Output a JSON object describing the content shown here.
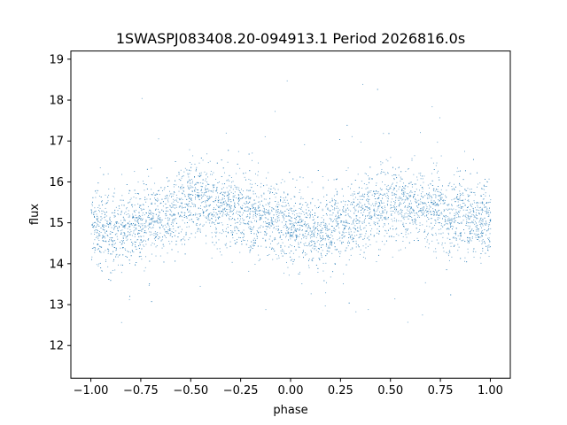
{
  "chart_data": {
    "type": "scatter",
    "title": "1SWASPJ083408.20-094913.1 Period 2026816.0s",
    "xlabel": "phase",
    "ylabel": "flux",
    "xlim": [
      -1.1,
      1.1
    ],
    "ylim": [
      11.2,
      19.2
    ],
    "xticks": [
      -1.0,
      -0.75,
      -0.5,
      -0.25,
      0.0,
      0.25,
      0.5,
      0.75,
      1.0
    ],
    "xtick_labels": [
      "−1.00",
      "−0.75",
      "−0.50",
      "−0.25",
      "0.00",
      "0.25",
      "0.50",
      "0.75",
      "1.00"
    ],
    "yticks": [
      12,
      13,
      14,
      15,
      16,
      17,
      18,
      19
    ],
    "ytick_labels": [
      "12",
      "13",
      "14",
      "15",
      "16",
      "17",
      "18",
      "19"
    ],
    "marker_color": "#1f77b4",
    "grid": false,
    "series": [
      {
        "phase_range": [
          -1.0,
          1.0
        ],
        "mean_flux_profile": {
          "phase": [
            -1.0,
            -0.875,
            -0.75,
            -0.625,
            -0.5,
            -0.375,
            -0.25,
            -0.125,
            0.0,
            0.125,
            0.25,
            0.375,
            0.5,
            0.625,
            0.75,
            0.875,
            1.0
          ],
          "flux": [
            15.0,
            14.7,
            15.0,
            15.2,
            15.6,
            15.4,
            15.3,
            15.1,
            15.0,
            14.7,
            15.0,
            15.2,
            15.6,
            15.4,
            15.3,
            15.1,
            15.0
          ]
        },
        "scatter_sigma": 0.45,
        "flux_min": 11.6,
        "flux_max": 18.8
      }
    ]
  }
}
